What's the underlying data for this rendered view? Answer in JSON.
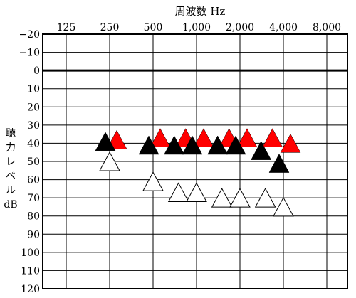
{
  "chart_data": {
    "type": "scatter",
    "title": "周波数 Hz",
    "ylabel_chars": [
      "聴",
      "力",
      "レ",
      "ベ",
      "ル",
      "dB"
    ],
    "x_ticks": [
      "125",
      "250",
      "500",
      "1,000",
      "2,000",
      "4,000",
      "8,000"
    ],
    "y_ticks": [
      "−20",
      "−10",
      "0",
      "10",
      "20",
      "30",
      "40",
      "50",
      "60",
      "70",
      "80",
      "90",
      "100",
      "110",
      "120"
    ],
    "ylim": [
      -20,
      120
    ],
    "grid": true,
    "series": [
      {
        "color": "#ff0000",
        "marker": "filled-triangle",
        "x": [
          250,
          500,
          750,
          1000,
          1500,
          2000,
          3000,
          4000
        ],
        "y": [
          38,
          37,
          37,
          37,
          37,
          37,
          37,
          40
        ]
      },
      {
        "color": "#000000",
        "marker": "filled-triangle",
        "x": [
          250,
          500,
          750,
          1000,
          1500,
          2000,
          3000,
          4000
        ],
        "y": [
          39,
          41,
          41,
          41,
          41,
          41,
          44,
          51
        ]
      },
      {
        "color": "#000000",
        "marker": "open-triangle",
        "x": [
          250,
          500,
          750,
          1000,
          1500,
          2000,
          3000,
          4000
        ],
        "y": [
          50,
          61,
          67,
          67,
          70,
          70,
          70,
          75
        ]
      }
    ]
  }
}
